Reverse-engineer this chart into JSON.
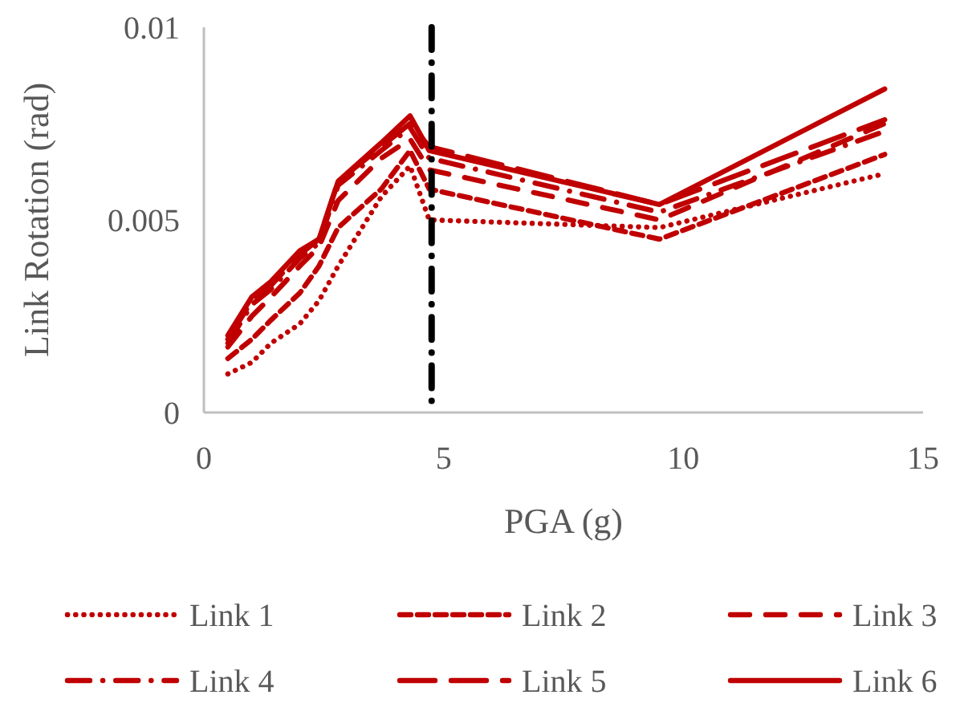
{
  "chart_data": {
    "type": "line",
    "xlabel": "PGA (g)",
    "ylabel": "Link Rotation (rad)",
    "x": [
      0.5,
      1,
      1.4,
      2,
      2.4,
      2.8,
      3.7,
      4.3,
      4.7,
      9.5,
      14.2
    ],
    "xlim": [
      0,
      15
    ],
    "xticks": [
      0,
      5,
      10,
      15
    ],
    "ylim": [
      0,
      0.01
    ],
    "yticks": [
      {
        "value": 0,
        "label": "0"
      },
      {
        "value": 0.005,
        "label": "0.005"
      },
      {
        "value": 0.01,
        "label": "0.01"
      }
    ],
    "grid": false,
    "legend": "bottom",
    "marker": "none",
    "ref_lines": [
      {
        "axis": "x",
        "value": 4.75,
        "color": "#000000",
        "line_style": "dashdot"
      }
    ],
    "series": [
      {
        "name": "Link 1",
        "color": "#c00000",
        "line_style": "dotted",
        "values": [
          0.001,
          0.0013,
          0.0018,
          0.0023,
          0.0029,
          0.0038,
          0.0056,
          0.0064,
          0.005,
          0.0048,
          0.0062
        ]
      },
      {
        "name": "Link 2",
        "color": "#c00000",
        "line_style": "dashed",
        "values": [
          0.0014,
          0.0019,
          0.0024,
          0.0031,
          0.0038,
          0.0048,
          0.0058,
          0.0068,
          0.0058,
          0.0045,
          0.0067
        ]
      },
      {
        "name": "Link 3",
        "color": "#c00000",
        "line_style": "dashed-wide",
        "values": [
          0.0017,
          0.0025,
          0.003,
          0.0038,
          0.0043,
          0.0055,
          0.0066,
          0.0071,
          0.0063,
          0.005,
          0.0075
        ]
      },
      {
        "name": "Link 4",
        "color": "#c00000",
        "line_style": "dashdot",
        "values": [
          0.0018,
          0.0028,
          0.0032,
          0.004,
          0.0044,
          0.0059,
          0.0068,
          0.0074,
          0.0066,
          0.0052,
          0.0073
        ]
      },
      {
        "name": "Link 5",
        "color": "#c00000",
        "line_style": "longdash",
        "values": [
          0.0019,
          0.0029,
          0.0033,
          0.0041,
          0.0045,
          0.006,
          0.0069,
          0.0075,
          0.0069,
          0.0054,
          0.0076
        ]
      },
      {
        "name": "Link 6",
        "color": "#c00000",
        "line_style": "solid",
        "values": [
          0.002,
          0.003,
          0.0034,
          0.0042,
          0.0045,
          0.006,
          0.007,
          0.0077,
          0.0068,
          0.0054,
          0.0084
        ]
      }
    ]
  }
}
